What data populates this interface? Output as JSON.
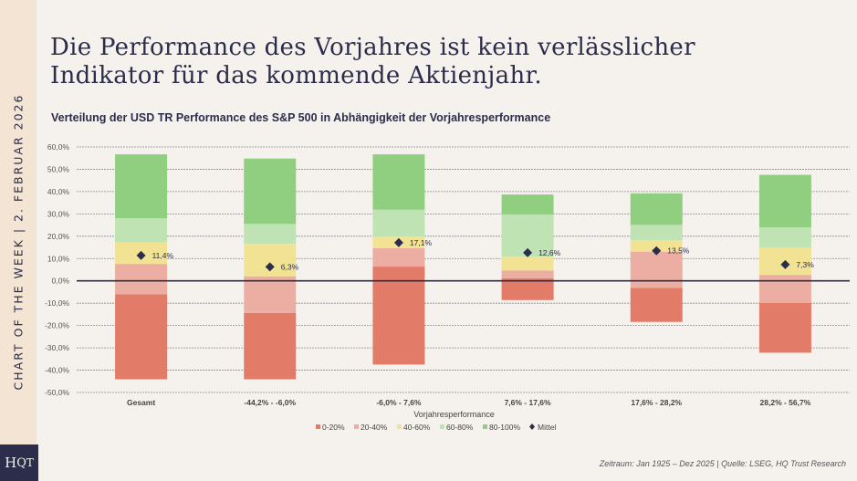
{
  "side_label": "CHART OF THE WEEK | 2. FEBRUAR 2026",
  "logo": "HQT",
  "title_line1": "Die Performance des Vorjahres ist kein verlässlicher",
  "title_line2": "Indikator für das kommende Aktienjahr.",
  "footer": "Zeitraum: Jan 1925 – Dez 2025 | Quelle: LSEG, HQ Trust Research",
  "colors": {
    "p0_20": "#e27c68",
    "p20_40": "#ecaea2",
    "p40_60": "#f2e394",
    "p60_80": "#bfe3b2",
    "p80_100": "#90cf80",
    "mean": "#2b2d4a"
  },
  "chart_data": {
    "type": "bar",
    "subtype": "floating-stacked",
    "title": "Verteilung der USD TR Performance des S&P 500 in Abhängigkeit der Vorjahresperformance",
    "xlabel": "Vorjahresperformance",
    "ylabel": "",
    "ylim": [
      -50,
      60
    ],
    "yticks": [
      60,
      50,
      40,
      30,
      20,
      10,
      0,
      -10,
      -20,
      -30,
      -40,
      -50
    ],
    "ytick_labels": [
      "60,0%",
      "50,0%",
      "40,0%",
      "30,0%",
      "20,0%",
      "10,0%",
      "0,0%",
      "-10,0%",
      "-20,0%",
      "-30,0%",
      "-40,0%",
      "-50,0%"
    ],
    "grid": true,
    "legend_position": "bottom",
    "categories": [
      "Gesamt",
      "-44,2% - -6,0%",
      "-6,0% - 7,6%",
      "7,6% - 17,6%",
      "17,6% - 28,2%",
      "28,2% - 56,7%"
    ],
    "boundaries_desc": "min, p20, p40, p60, p80, max per category",
    "boundaries": [
      [
        -44.1,
        -6.0,
        7.6,
        17.3,
        28.1,
        56.7
      ],
      [
        -44.1,
        -14.4,
        2.0,
        16.6,
        25.5,
        54.8
      ],
      [
        -37.5,
        6.4,
        14.6,
        19.9,
        31.9,
        56.7
      ],
      [
        -8.6,
        1.2,
        4.6,
        10.9,
        29.8,
        38.7
      ],
      [
        -18.4,
        -3.1,
        13.1,
        18.3,
        25.1,
        39.2
      ],
      [
        -32.2,
        -9.9,
        2.7,
        14.9,
        24.0,
        47.5
      ]
    ],
    "series": [
      {
        "name": "0-20%",
        "color": "#e27c68"
      },
      {
        "name": "20-40%",
        "color": "#ecaea2"
      },
      {
        "name": "40-60%",
        "color": "#f2e394"
      },
      {
        "name": "60-80%",
        "color": "#bfe3b2"
      },
      {
        "name": "80-100%",
        "color": "#90cf80"
      }
    ],
    "mean": {
      "name": "Mittel",
      "values": [
        11.4,
        6.3,
        17.1,
        12.6,
        13.5,
        7.3
      ],
      "labels": [
        "11,4%",
        "6,3%",
        "17,1%",
        "12,6%",
        "13,5%",
        "7,3%"
      ]
    }
  }
}
